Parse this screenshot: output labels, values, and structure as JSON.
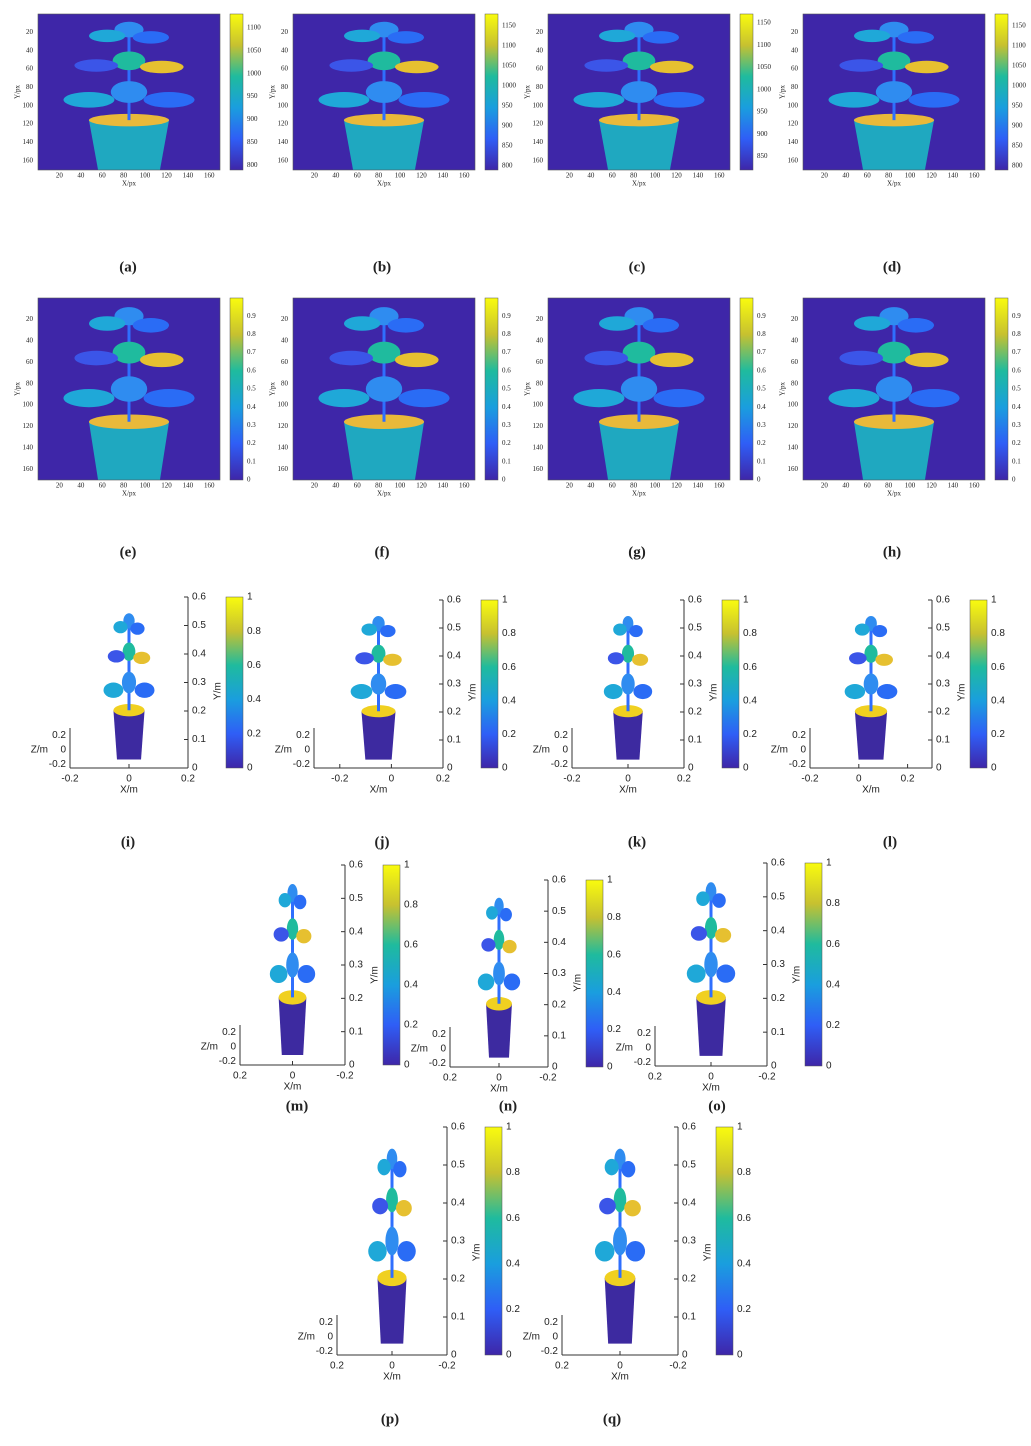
{
  "panels": [
    {
      "caption": "(a)",
      "kind": "image",
      "xlabel": "X/px",
      "ylabel": "Y/px",
      "xticks": [
        20,
        40,
        60,
        80,
        100,
        120,
        140,
        160
      ],
      "yticks": [
        20,
        40,
        60,
        80,
        100,
        120,
        140,
        160
      ],
      "xlim": [
        0,
        170
      ],
      "ylim": [
        0,
        170
      ],
      "cbar_ticks": [
        800,
        850,
        900,
        950,
        1000,
        1050,
        1100
      ],
      "cbar_lim": [
        790,
        1130
      ]
    },
    {
      "caption": "(b)",
      "kind": "image",
      "xlabel": "X/px",
      "ylabel": "Y/px",
      "xticks": [
        20,
        40,
        60,
        80,
        100,
        120,
        140,
        160
      ],
      "yticks": [
        20,
        40,
        60,
        80,
        100,
        120,
        140,
        160
      ],
      "xlim": [
        0,
        170
      ],
      "ylim": [
        0,
        170
      ],
      "cbar_ticks": [
        800,
        850,
        900,
        950,
        1000,
        1050,
        1100,
        1150
      ],
      "cbar_lim": [
        790,
        1180
      ]
    },
    {
      "caption": "(c)",
      "kind": "image",
      "xlabel": "X/px",
      "ylabel": "Y/px",
      "xticks": [
        20,
        40,
        60,
        80,
        100,
        120,
        140,
        160
      ],
      "yticks": [
        20,
        40,
        60,
        80,
        100,
        120,
        140,
        160
      ],
      "xlim": [
        0,
        170
      ],
      "ylim": [
        0,
        170
      ],
      "cbar_ticks": [
        850,
        900,
        950,
        1000,
        1050,
        1100,
        1150
      ],
      "cbar_lim": [
        820,
        1170
      ]
    },
    {
      "caption": "(d)",
      "kind": "image",
      "xlabel": "X/px",
      "ylabel": "Y/px",
      "xticks": [
        20,
        40,
        60,
        80,
        100,
        120,
        140,
        160
      ],
      "yticks": [
        20,
        40,
        60,
        80,
        100,
        120,
        140,
        160
      ],
      "xlim": [
        0,
        170
      ],
      "ylim": [
        0,
        170
      ],
      "cbar_ticks": [
        800,
        850,
        900,
        950,
        1000,
        1050,
        1100,
        1150
      ],
      "cbar_lim": [
        790,
        1180
      ]
    },
    {
      "caption": "(e)",
      "kind": "image",
      "xlabel": "X/px",
      "ylabel": "Y/px",
      "xticks": [
        20,
        40,
        60,
        80,
        100,
        120,
        140,
        160
      ],
      "yticks": [
        20,
        40,
        60,
        80,
        100,
        120,
        140,
        160
      ],
      "xlim": [
        0,
        170
      ],
      "ylim": [
        0,
        170
      ],
      "cbar_ticks": [
        0,
        0.1,
        0.2,
        0.3,
        0.4,
        0.5,
        0.6,
        0.7,
        0.8,
        0.9
      ],
      "cbar_lim": [
        0,
        1
      ]
    },
    {
      "caption": "(f)",
      "kind": "image",
      "xlabel": "X/px",
      "ylabel": "Y/px",
      "xticks": [
        20,
        40,
        60,
        80,
        100,
        120,
        140,
        160
      ],
      "yticks": [
        20,
        40,
        60,
        80,
        100,
        120,
        140,
        160
      ],
      "xlim": [
        0,
        170
      ],
      "ylim": [
        0,
        170
      ],
      "cbar_ticks": [
        0,
        0.1,
        0.2,
        0.3,
        0.4,
        0.5,
        0.6,
        0.7,
        0.8,
        0.9
      ],
      "cbar_lim": [
        0,
        1
      ]
    },
    {
      "caption": "(g)",
      "kind": "image",
      "xlabel": "X/px",
      "ylabel": "Y/px",
      "xticks": [
        20,
        40,
        60,
        80,
        100,
        120,
        140,
        160
      ],
      "yticks": [
        20,
        40,
        60,
        80,
        100,
        120,
        140,
        160
      ],
      "xlim": [
        0,
        170
      ],
      "ylim": [
        0,
        170
      ],
      "cbar_ticks": [
        0,
        0.1,
        0.2,
        0.3,
        0.4,
        0.5,
        0.6,
        0.7,
        0.8,
        0.9
      ],
      "cbar_lim": [
        0,
        1
      ]
    },
    {
      "caption": "(h)",
      "kind": "image",
      "xlabel": "X/px",
      "ylabel": "Y/px",
      "xticks": [
        20,
        40,
        60,
        80,
        100,
        120,
        140,
        160
      ],
      "yticks": [
        20,
        40,
        60,
        80,
        100,
        120,
        140,
        160
      ],
      "xlim": [
        0,
        170
      ],
      "ylim": [
        0,
        170
      ],
      "cbar_ticks": [
        0,
        0.1,
        0.2,
        0.3,
        0.4,
        0.5,
        0.6,
        0.7,
        0.8,
        0.9
      ],
      "cbar_lim": [
        0,
        1
      ]
    },
    {
      "caption": "(i)",
      "kind": "cloud",
      "xlabel": "X/m",
      "ylabel": "Y/m",
      "zlabel": "Z/m",
      "xticks": [
        -0.2,
        0,
        0.2
      ],
      "xlim": [
        -0.2,
        0.2
      ],
      "yticks": [
        0,
        0.1,
        0.2,
        0.3,
        0.4,
        0.5,
        0.6
      ],
      "ylim": [
        0,
        0.6
      ],
      "zticks": [
        0.2,
        0,
        -0.2
      ],
      "zlim": [
        -0.25,
        0.3
      ],
      "cbar_ticks": [
        0,
        0.2,
        0.4,
        0.6,
        0.8,
        1
      ],
      "cbar_lim": [
        0,
        1
      ]
    },
    {
      "caption": "(j)",
      "kind": "cloud",
      "xlabel": "X/m",
      "ylabel": "Y/m",
      "zlabel": "Z/m",
      "xticks": [
        -0.2,
        0,
        0.2
      ],
      "xlim": [
        -0.3,
        0.2
      ],
      "yticks": [
        0,
        0.1,
        0.2,
        0.3,
        0.4,
        0.5,
        0.6
      ],
      "ylim": [
        0,
        0.6
      ],
      "zticks": [
        0.2,
        0,
        -0.2
      ],
      "zlim": [
        -0.25,
        0.3
      ],
      "cbar_ticks": [
        0,
        0.2,
        0.4,
        0.6,
        0.8,
        1
      ],
      "cbar_lim": [
        0,
        1
      ]
    },
    {
      "caption": "(k)",
      "kind": "cloud",
      "xlabel": "X/m",
      "ylabel": "Y/m",
      "zlabel": "Z/m",
      "xticks": [
        -0.2,
        0,
        0.2
      ],
      "xlim": [
        -0.2,
        0.2
      ],
      "yticks": [
        0,
        0.1,
        0.2,
        0.3,
        0.4,
        0.5,
        0.6
      ],
      "ylim": [
        0,
        0.6
      ],
      "zticks": [
        0.2,
        0,
        -0.2
      ],
      "zlim": [
        -0.25,
        0.3
      ],
      "cbar_ticks": [
        0,
        0.2,
        0.4,
        0.6,
        0.8,
        1
      ],
      "cbar_lim": [
        0,
        1
      ]
    },
    {
      "caption": "(l)",
      "kind": "cloud",
      "xlabel": "X/m",
      "ylabel": "Y/m",
      "zlabel": "Z/m",
      "xticks": [
        -0.2,
        0,
        0.2
      ],
      "xlim": [
        -0.2,
        0.3
      ],
      "yticks": [
        0,
        0.1,
        0.2,
        0.3,
        0.4,
        0.5,
        0.6
      ],
      "ylim": [
        0,
        0.6
      ],
      "zticks": [
        0.2,
        0,
        -0.2
      ],
      "zlim": [
        -0.25,
        0.3
      ],
      "cbar_ticks": [
        0,
        0.2,
        0.4,
        0.6,
        0.8,
        1
      ],
      "cbar_lim": [
        0,
        1
      ]
    },
    {
      "caption": "(m)",
      "kind": "cloud",
      "xlabel": "X/m",
      "ylabel": "Y/m",
      "zlabel": "Z/m",
      "xticks": [
        0.2,
        0,
        -0.2
      ],
      "xlim": [
        0.2,
        -0.2
      ],
      "yticks": [
        0,
        0.1,
        0.2,
        0.3,
        0.4,
        0.5,
        0.6
      ],
      "ylim": [
        0,
        0.6
      ],
      "zticks": [
        0.2,
        0,
        -0.2
      ],
      "zlim": [
        -0.25,
        0.3
      ],
      "cbar_ticks": [
        0,
        0.2,
        0.4,
        0.6,
        0.8,
        1
      ],
      "cbar_lim": [
        0,
        1
      ]
    },
    {
      "caption": "(n)",
      "kind": "cloud",
      "xlabel": "X/m",
      "ylabel": "Y/m",
      "zlabel": "Z/m",
      "xticks": [
        0.2,
        0,
        -0.2
      ],
      "xlim": [
        0.2,
        -0.2
      ],
      "yticks": [
        0,
        0.1,
        0.2,
        0.3,
        0.4,
        0.5,
        0.6
      ],
      "ylim": [
        0,
        0.6
      ],
      "zticks": [
        0.2,
        0,
        -0.2
      ],
      "zlim": [
        -0.25,
        0.3
      ],
      "cbar_ticks": [
        0,
        0.2,
        0.4,
        0.6,
        0.8,
        1
      ],
      "cbar_lim": [
        0,
        1
      ]
    },
    {
      "caption": "(o)",
      "kind": "cloud",
      "xlabel": "X/m",
      "ylabel": "Y/m",
      "zlabel": "Z/m",
      "xticks": [
        0.2,
        0,
        -0.2
      ],
      "xlim": [
        0.2,
        -0.2
      ],
      "yticks": [
        0,
        0.1,
        0.2,
        0.3,
        0.4,
        0.5,
        0.6
      ],
      "ylim": [
        0,
        0.6
      ],
      "zticks": [
        0.2,
        0,
        -0.2
      ],
      "zlim": [
        -0.25,
        0.3
      ],
      "cbar_ticks": [
        0,
        0.2,
        0.4,
        0.6,
        0.8,
        1
      ],
      "cbar_lim": [
        0,
        1
      ]
    },
    {
      "caption": "(p)",
      "kind": "cloud",
      "xlabel": "X/m",
      "ylabel": "Y/m",
      "zlabel": "Z/m",
      "xticks": [
        0.2,
        0,
        -0.2
      ],
      "xlim": [
        0.2,
        -0.2
      ],
      "yticks": [
        0,
        0.1,
        0.2,
        0.3,
        0.4,
        0.5,
        0.6
      ],
      "ylim": [
        0,
        0.6
      ],
      "zticks": [
        0.2,
        0,
        -0.2
      ],
      "zlim": [
        -0.25,
        0.3
      ],
      "cbar_ticks": [
        0,
        0.2,
        0.4,
        0.6,
        0.8,
        1
      ],
      "cbar_lim": [
        0,
        1
      ]
    },
    {
      "caption": "(q)",
      "kind": "cloud",
      "xlabel": "X/m",
      "ylabel": "Y/m",
      "zlabel": "Z/m",
      "xticks": [
        0.2,
        0,
        -0.2
      ],
      "xlim": [
        0.2,
        -0.2
      ],
      "yticks": [
        0,
        0.1,
        0.2,
        0.3,
        0.4,
        0.5,
        0.6
      ],
      "ylim": [
        0,
        0.6
      ],
      "zticks": [
        0.2,
        0,
        -0.2
      ],
      "zlim": [
        -0.25,
        0.3
      ],
      "cbar_ticks": [
        0,
        0.2,
        0.4,
        0.6,
        0.8,
        1
      ],
      "cbar_lim": [
        0,
        1
      ]
    }
  ]
}
